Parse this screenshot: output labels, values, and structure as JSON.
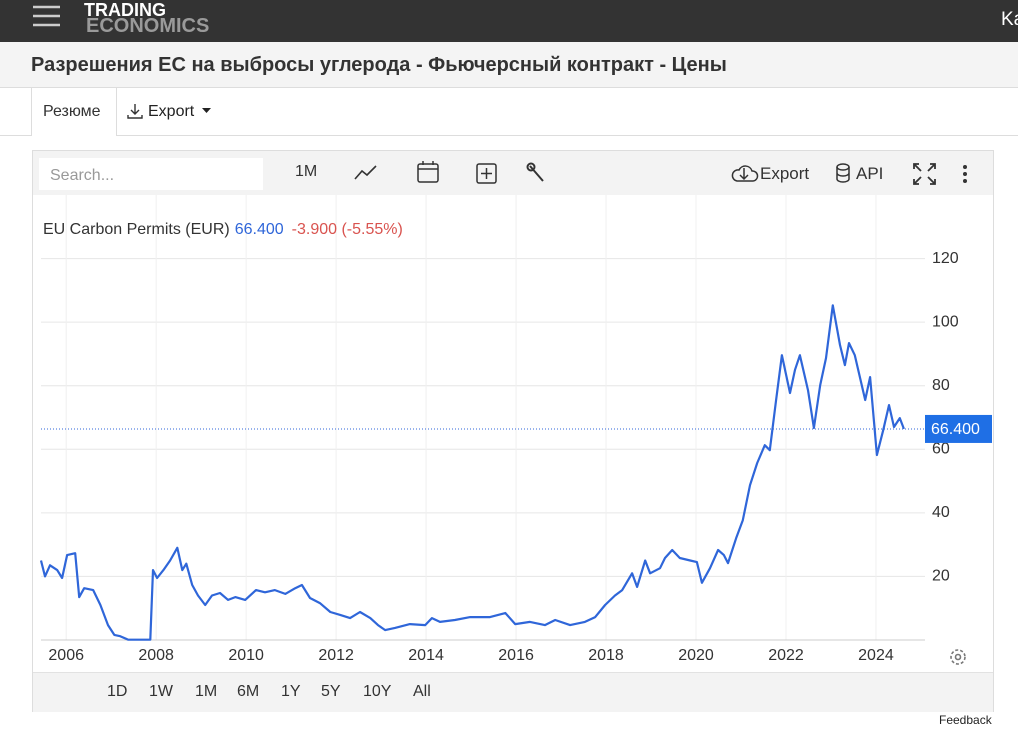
{
  "header": {
    "logo_top": "TRADING",
    "logo_bottom": "ECONOMICS",
    "corner": "Ka"
  },
  "title": "Разрешения ЕС на выбросы углерода - Фьючерсный контракт - Цены",
  "tabs": [
    "Резюме",
    "Export"
  ],
  "toolbar": {
    "search_placeholder": "Search...",
    "interval": "1M",
    "export": "Export",
    "api": "API"
  },
  "ranges": [
    "1D",
    "1W",
    "1M",
    "6M",
    "1Y",
    "5Y",
    "10Y",
    "All"
  ],
  "feedback": "Feedback",
  "chart_data": {
    "type": "line",
    "series": [
      {
        "name": "EU Carbon Permits (EUR)",
        "color": "#2f66d9",
        "x": [
          2005.44,
          2005.53,
          2005.64,
          2005.8,
          2005.91,
          2006.02,
          2006.2,
          2006.29,
          2006.4,
          2006.6,
          2006.76,
          2006.93,
          2007.07,
          2007.2,
          2007.38,
          2007.87,
          2007.93,
          2008.02,
          2008.16,
          2008.31,
          2008.47,
          2008.58,
          2008.67,
          2008.8,
          2008.93,
          2009.09,
          2009.24,
          2009.42,
          2009.6,
          2009.76,
          2009.98,
          2010.22,
          2010.42,
          2010.64,
          2010.87,
          2011.09,
          2011.24,
          2011.42,
          2011.64,
          2011.87,
          2012.09,
          2012.31,
          2012.53,
          2012.76,
          2012.93,
          2013.09,
          2013.31,
          2013.64,
          2013.98,
          2014.13,
          2014.31,
          2014.64,
          2014.98,
          2015.42,
          2015.76,
          2015.98,
          2016.31,
          2016.64,
          2016.87,
          2017.2,
          2017.53,
          2017.76,
          2017.98,
          2018.2,
          2018.36,
          2018.58,
          2018.69,
          2018.87,
          2018.98,
          2019.2,
          2019.31,
          2019.47,
          2019.64,
          2019.87,
          2020.02,
          2020.13,
          2020.31,
          2020.49,
          2020.62,
          2020.71,
          2020.89,
          2021.04,
          2021.2,
          2021.36,
          2021.53,
          2021.64,
          2021.78,
          2021.91,
          2022.09,
          2022.2,
          2022.31,
          2022.49,
          2022.62,
          2022.76,
          2022.89,
          2023.04,
          2023.2,
          2023.31,
          2023.4,
          2023.53,
          2023.76,
          2023.87,
          2024.02,
          2024.16,
          2024.29,
          2024.4,
          2024.53,
          2024.62
        ],
        "values": [
          25,
          20,
          23.5,
          22,
          19.5,
          26.7,
          27.3,
          13.5,
          16.3,
          15.7,
          11,
          4.7,
          1.6,
          1.2,
          0.1,
          0.1,
          22,
          19.5,
          22,
          25,
          29,
          22,
          24,
          17.3,
          14,
          11,
          14,
          14.8,
          12.6,
          13.5,
          12.6,
          15.7,
          15,
          15.7,
          14.5,
          16.3,
          17.3,
          13.2,
          11.6,
          8.8,
          7.9,
          6.9,
          8.8,
          6.9,
          4.7,
          3.1,
          3.8,
          5,
          4.7,
          6.9,
          5.7,
          6.3,
          7.2,
          7.2,
          8.5,
          5,
          5.7,
          4.7,
          6.3,
          4.7,
          5.7,
          7.2,
          11,
          14,
          15.7,
          21,
          16.7,
          25,
          21,
          22.6,
          25.8,
          28.3,
          25.8,
          25,
          24.5,
          18,
          22.6,
          28.3,
          26.7,
          24.2,
          32,
          37.7,
          48.7,
          55.7,
          61.3,
          59.7,
          75.5,
          89.6,
          77.7,
          85,
          89.6,
          78.6,
          66.7,
          80.2,
          88.7,
          105.3,
          92.8,
          86.5,
          93.4,
          89.6,
          75.5,
          82.7,
          58.2,
          66,
          73.9,
          67,
          69.8,
          66.4
        ]
      }
    ],
    "last": {
      "value": 66.4,
      "label": "66.400"
    },
    "change": "-3.900 (-5.55%)",
    "xlim": [
      2005.44,
      2025.09
    ],
    "xticks": [
      2006,
      2008,
      2010,
      2012,
      2014,
      2016,
      2018,
      2020,
      2022,
      2024
    ],
    "ylim": [
      0,
      140
    ],
    "yticks": [
      20,
      40,
      60,
      80,
      100,
      120
    ],
    "grid": true
  }
}
